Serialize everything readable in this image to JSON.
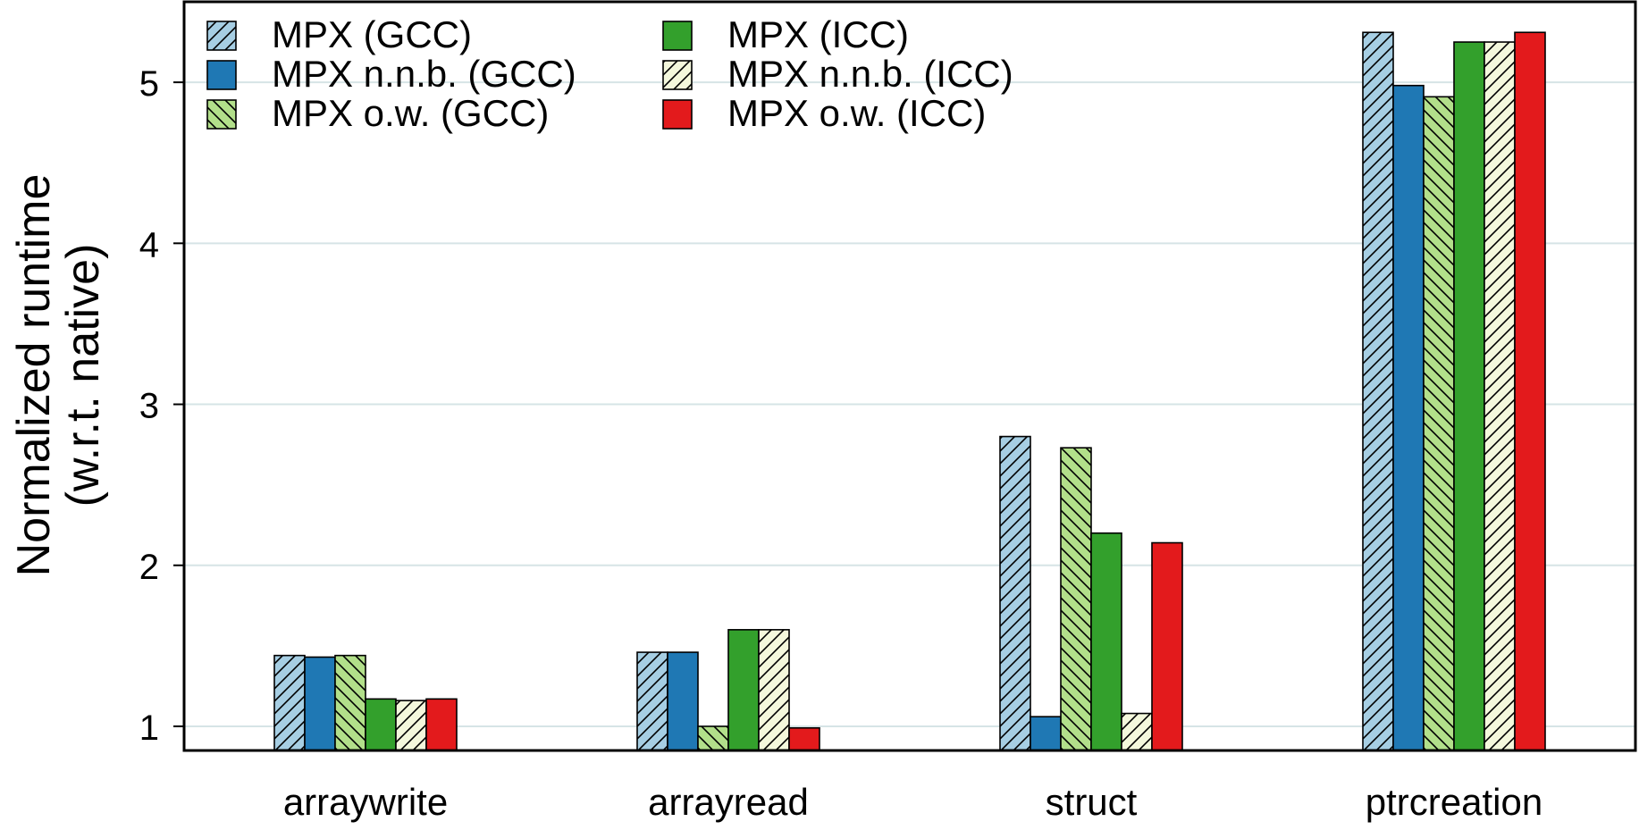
{
  "chart_data": {
    "type": "bar",
    "title": "",
    "xlabel": "",
    "ylabel": "Normalized runtime",
    "ylabel_line2": "(w.r.t. native)",
    "categories": [
      "arraywrite",
      "arrayread",
      "struct",
      "ptrcreation"
    ],
    "ylim": [
      0.85,
      5.5
    ],
    "yticks": [
      1,
      2,
      3,
      4,
      5
    ],
    "grid": "horizontal",
    "legend_position": "top-left",
    "series": [
      {
        "name": "MPX (GCC)",
        "values": [
          1.44,
          1.46,
          2.8,
          5.31
        ],
        "color": "#a6cee3",
        "pattern": "hatch-forward"
      },
      {
        "name": "MPX n.n.b. (GCC)",
        "values": [
          1.43,
          1.46,
          1.06,
          4.98
        ],
        "color": "#1f78b4",
        "pattern": "solid"
      },
      {
        "name": "MPX o.w. (GCC)",
        "values": [
          1.44,
          1.0,
          2.73,
          4.91
        ],
        "color": "#b2df8a",
        "pattern": "hatch-backward"
      },
      {
        "name": "MPX (ICC)",
        "values": [
          1.17,
          1.6,
          2.2,
          5.25
        ],
        "color": "#33a02c",
        "pattern": "solid"
      },
      {
        "name": "MPX n.n.b. (ICC)",
        "values": [
          1.16,
          1.6,
          1.08,
          5.25
        ],
        "color": "#f4f8dc",
        "pattern": "hatch-forward"
      },
      {
        "name": "MPX o.w. (ICC)",
        "values": [
          1.17,
          0.99,
          2.14,
          5.31
        ],
        "color": "#e31a1c",
        "pattern": "solid"
      }
    ]
  }
}
